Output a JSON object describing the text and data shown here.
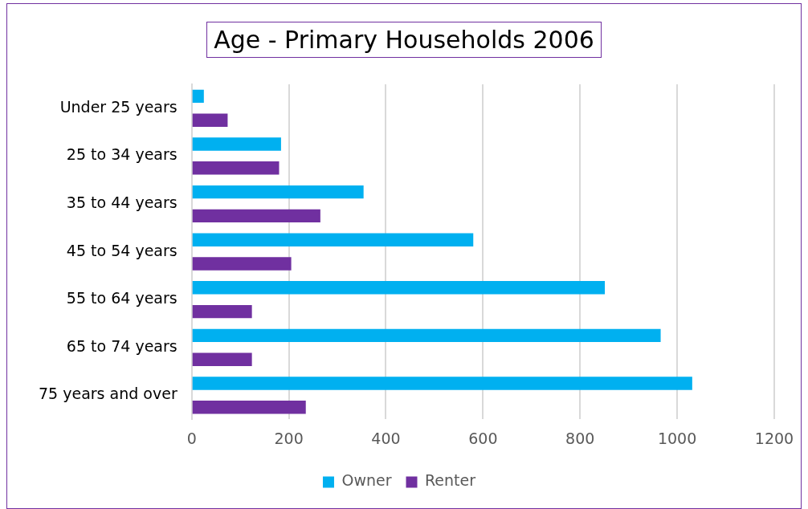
{
  "chart_data": {
    "type": "bar",
    "orientation": "horizontal",
    "title": "Age - Primary Households 2006",
    "categories": [
      "Under 25 years",
      "25 to 34 years",
      "35 to 44 years",
      "45 to 54 years",
      "55 to 64 years",
      "65 to 74 years",
      "75 years and over"
    ],
    "series": [
      {
        "name": "Owner",
        "color": "#00b0f0",
        "values": [
          25,
          184,
          354,
          580,
          851,
          966,
          1031
        ]
      },
      {
        "name": "Renter",
        "color": "#7030a0",
        "values": [
          74,
          180,
          265,
          205,
          124,
          124,
          235
        ]
      }
    ],
    "xlim": [
      0,
      1200
    ],
    "xticks": [
      0,
      200,
      400,
      600,
      800,
      1000,
      1200
    ],
    "grid": "x",
    "legend": "bottom"
  }
}
